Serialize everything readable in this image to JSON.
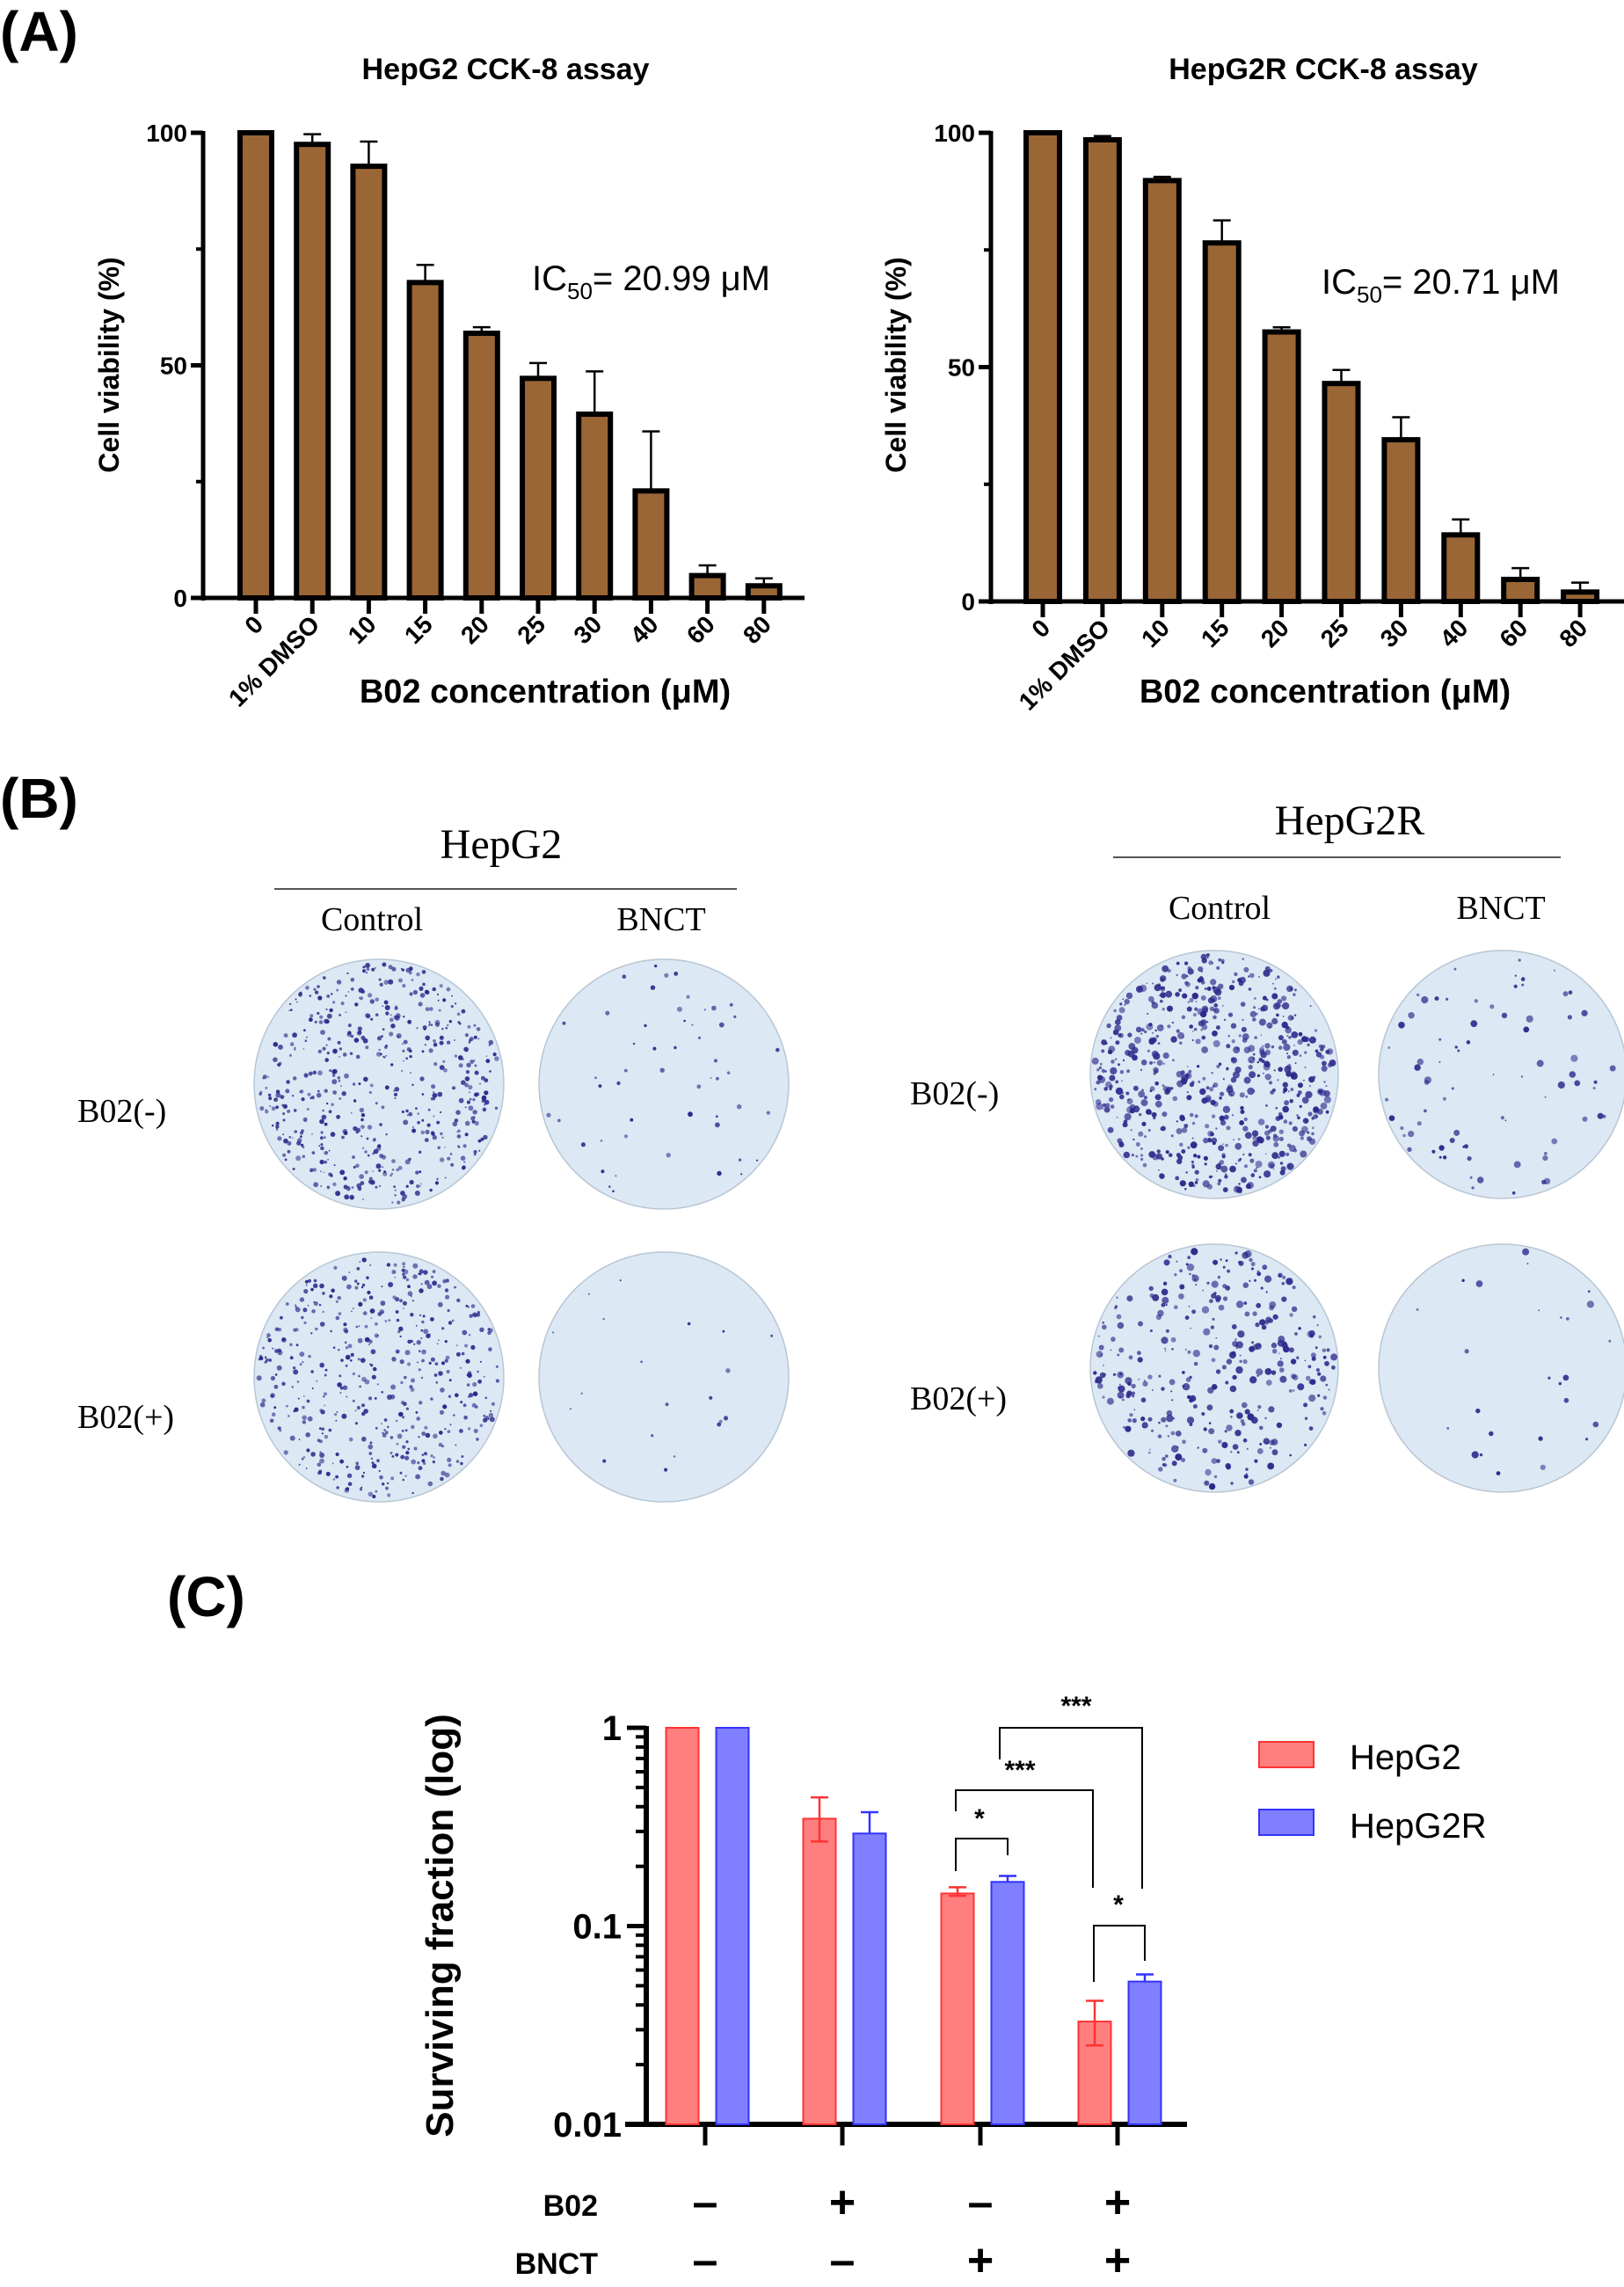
{
  "figure": {
    "panel_labels": {
      "a": "(A)",
      "b": "(B)",
      "c": "(C)"
    }
  },
  "chart_data": [
    {
      "id": "hepg2_cck8",
      "type": "bar",
      "title": "HepG2 CCK-8 assay",
      "xlabel": "B02 concentration (μM)",
      "ylabel": "Cell viability (%)",
      "ylim": [
        0,
        100
      ],
      "yticks": [
        0,
        50,
        100
      ],
      "yticks_minor": [
        25,
        75
      ],
      "categories": [
        "0",
        "1% DMSO",
        "10",
        "15",
        "20",
        "25",
        "30",
        "40",
        "60",
        "80"
      ],
      "values": [
        100,
        97.5,
        92.8,
        67.8,
        56.9,
        47.2,
        39.5,
        23.0,
        4.8,
        2.6
      ],
      "error_upper": [
        100,
        99.7,
        98.1,
        71.6,
        58.2,
        50.5,
        48.7,
        35.8,
        7.0,
        4.2
      ],
      "annotation": {
        "prefix": "IC",
        "sub": "50",
        "suffix": "= 20.99 μM"
      },
      "bar_color": "#9a6636",
      "edge_color": "#000000",
      "grid": false
    },
    {
      "id": "hepg2r_cck8",
      "type": "bar",
      "title": "HepG2R CCK-8 assay",
      "xlabel": "B02 concentration (μM)",
      "ylabel": "Cell viability (%)",
      "ylim": [
        0,
        100
      ],
      "yticks": [
        0,
        50,
        100
      ],
      "yticks_minor": [
        25,
        75
      ],
      "categories": [
        "0",
        "1% DMSO",
        "10",
        "15",
        "20",
        "25",
        "30",
        "40",
        "60",
        "80"
      ],
      "values": [
        100,
        98.5,
        89.8,
        76.5,
        57.5,
        46.5,
        34.5,
        14.2,
        4.7,
        2.0
      ],
      "error_upper": [
        100,
        99.3,
        90.6,
        81.3,
        58.5,
        49.4,
        39.3,
        17.5,
        7.1,
        4.0
      ],
      "annotation": {
        "prefix": "IC",
        "sub": "50",
        "suffix": "= 20.71 μM"
      },
      "bar_color": "#9a6636",
      "edge_color": "#000000",
      "grid": false
    },
    {
      "id": "surviving_fraction",
      "type": "bar",
      "scale": "log",
      "title": "",
      "ylabel": "Surviving fraction (log)",
      "ylim": [
        0.01,
        1
      ],
      "yticks": [
        0.01,
        0.1,
        1
      ],
      "ytick_labels": [
        "0.01",
        "0.1",
        "1"
      ],
      "row_labels": [
        "B02",
        "BNCT"
      ],
      "categories": [
        {
          "B02": "-",
          "BNCT": "-"
        },
        {
          "B02": "+",
          "BNCT": "-"
        },
        {
          "B02": "-",
          "BNCT": "+"
        },
        {
          "B02": "+",
          "BNCT": "+"
        }
      ],
      "series": [
        {
          "name": "HepG2",
          "color": "#ff7f7f",
          "edge": "#ff3333",
          "values": [
            1.0,
            0.348,
            0.146,
            0.033
          ],
          "error_upper": [
            1.0,
            0.446,
            0.157,
            0.042
          ],
          "error_lower": [
            1.0,
            0.267,
            0.142,
            0.025
          ]
        },
        {
          "name": "HepG2R",
          "color": "#7f7fff",
          "edge": "#3333ff",
          "values": [
            1.0,
            0.293,
            0.167,
            0.0525
          ],
          "error_upper": [
            1.0,
            0.375,
            0.179,
            0.057
          ],
          "error_lower": [
            1.0,
            0.293,
            0.167,
            0.0525
          ]
        }
      ],
      "legend": {
        "position": "top-right",
        "entries": [
          "HepG2",
          "HepG2R"
        ]
      },
      "significance": [
        {
          "label": "*",
          "from": {
            "group": 2,
            "series": 0
          },
          "to": {
            "group": 2,
            "series": 1
          }
        },
        {
          "label": "***",
          "from": {
            "group": 2,
            "series": 0
          },
          "to": {
            "group": 3,
            "series": 0
          }
        },
        {
          "label": "***",
          "from": {
            "group": 2,
            "series": 1
          },
          "to": {
            "group": 3,
            "series": 1
          }
        },
        {
          "label": "*",
          "from": {
            "group": 3,
            "series": 0
          },
          "to": {
            "group": 3,
            "series": 1
          }
        }
      ],
      "grid": false
    }
  ],
  "colony_assay": {
    "groups": [
      {
        "title": "HepG2",
        "columns": [
          "Control",
          "BNCT"
        ],
        "rows": [
          "B02(-)",
          "B02(+)"
        ],
        "colony_density": [
          [
            0.85,
            0.08
          ],
          [
            0.75,
            0.03
          ]
        ]
      },
      {
        "title": "HepG2R",
        "columns": [
          "Control",
          "BNCT"
        ],
        "rows": [
          "B02(-)",
          "B02(+)"
        ],
        "colony_density": [
          [
            1.0,
            0.12
          ],
          [
            0.55,
            0.04
          ]
        ]
      }
    ],
    "plate_color": "#dce8f3",
    "colony_color": "#2e2a8c"
  }
}
